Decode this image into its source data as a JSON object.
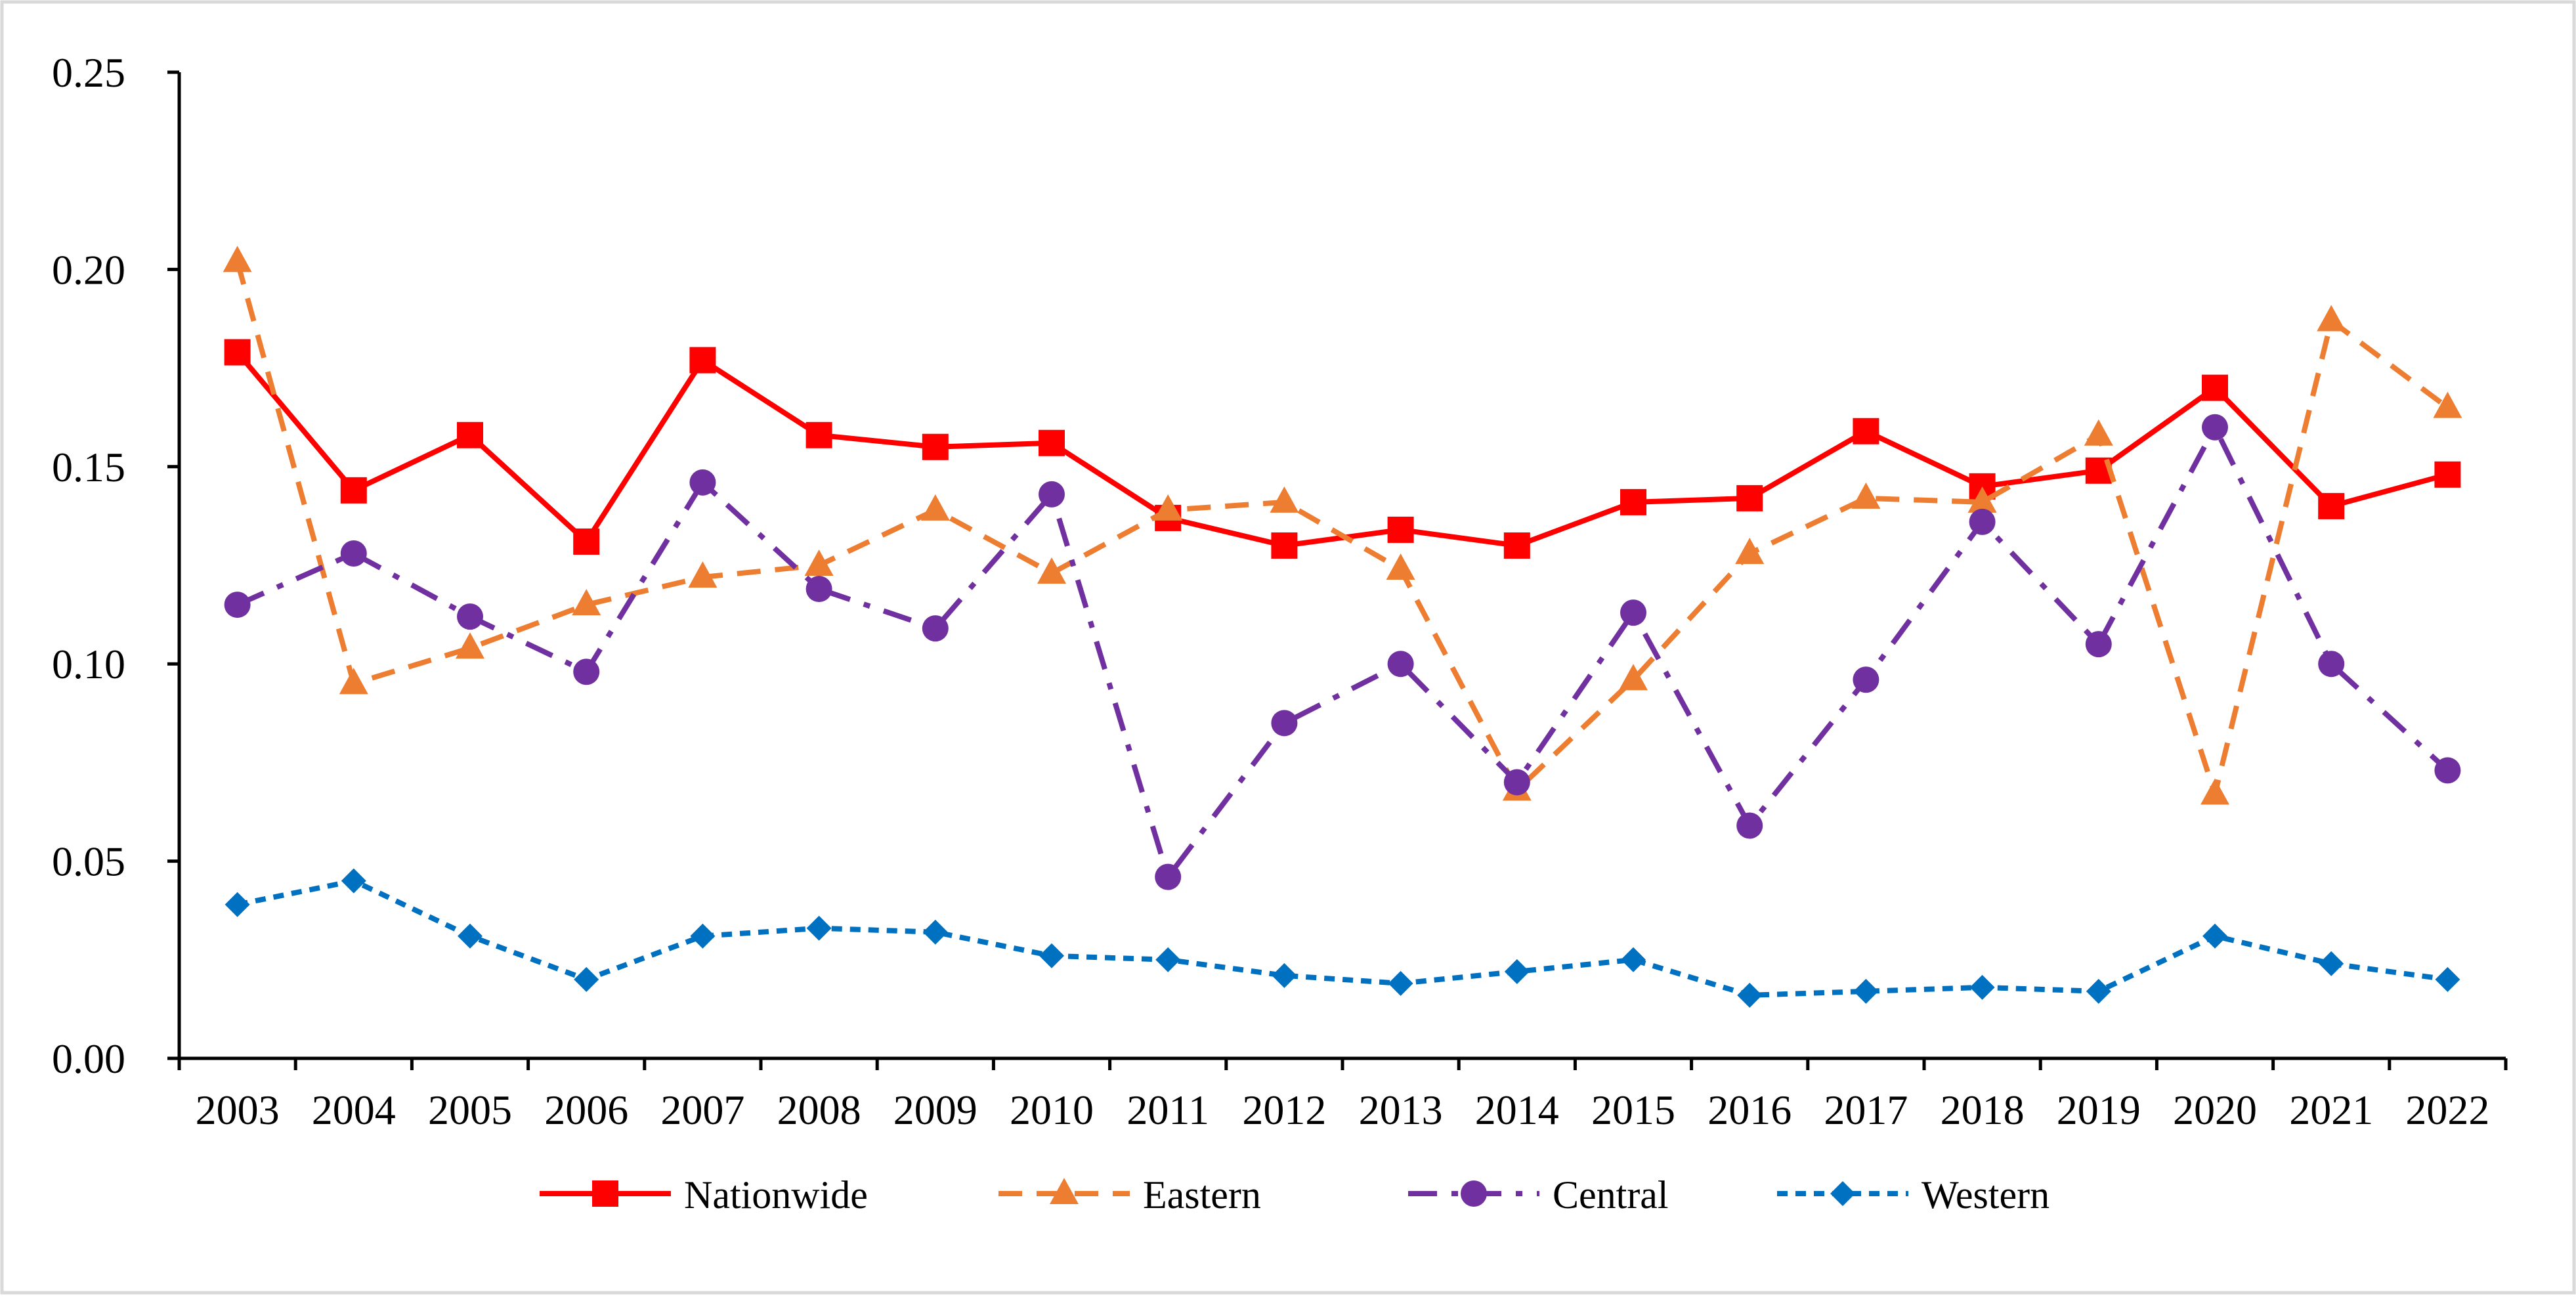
{
  "chart_data": {
    "type": "line",
    "title": "",
    "xlabel": "",
    "ylabel": "",
    "ylim": [
      0,
      0.25
    ],
    "yticks": [
      "0.00",
      "0.05",
      "0.10",
      "0.15",
      "0.20",
      "0.25"
    ],
    "grid": false,
    "legend_position": "bottom",
    "categories": [
      "2003",
      "2004",
      "2005",
      "2006",
      "2007",
      "2008",
      "2009",
      "2010",
      "2011",
      "2012",
      "2013",
      "2014",
      "2015",
      "2016",
      "2017",
      "2018",
      "2019",
      "2020",
      "2021",
      "2022"
    ],
    "series": [
      {
        "name": "Nationwide",
        "color": "#ff0000",
        "marker": "square",
        "dash": "solid",
        "values": [
          0.179,
          0.144,
          0.158,
          0.131,
          0.177,
          0.158,
          0.155,
          0.156,
          0.137,
          0.13,
          0.134,
          0.13,
          0.141,
          0.142,
          0.159,
          0.145,
          0.149,
          0.17,
          0.14,
          0.148
        ]
      },
      {
        "name": "Eastern",
        "color": "#ed7d31",
        "marker": "triangle",
        "dash": "dash",
        "values": [
          0.202,
          0.095,
          0.104,
          0.115,
          0.122,
          0.125,
          0.139,
          0.123,
          0.139,
          0.141,
          0.124,
          0.068,
          0.096,
          0.128,
          0.142,
          0.141,
          0.158,
          0.067,
          0.187,
          0.165
        ]
      },
      {
        "name": "Central",
        "color": "#7030a0",
        "marker": "circle",
        "dash": "dashdot",
        "values": [
          0.115,
          0.128,
          0.112,
          0.098,
          0.146,
          0.119,
          0.109,
          0.143,
          0.046,
          0.085,
          0.1,
          0.07,
          0.113,
          0.059,
          0.096,
          0.136,
          0.105,
          0.16,
          0.1,
          0.073
        ]
      },
      {
        "name": "Western",
        "color": "#0070c0",
        "marker": "diamond",
        "dash": "dot",
        "values": [
          0.039,
          0.045,
          0.031,
          0.02,
          0.031,
          0.033,
          0.032,
          0.026,
          0.025,
          0.021,
          0.019,
          0.022,
          0.025,
          0.016,
          0.017,
          0.018,
          0.017,
          0.031,
          0.024,
          0.02
        ]
      }
    ]
  }
}
